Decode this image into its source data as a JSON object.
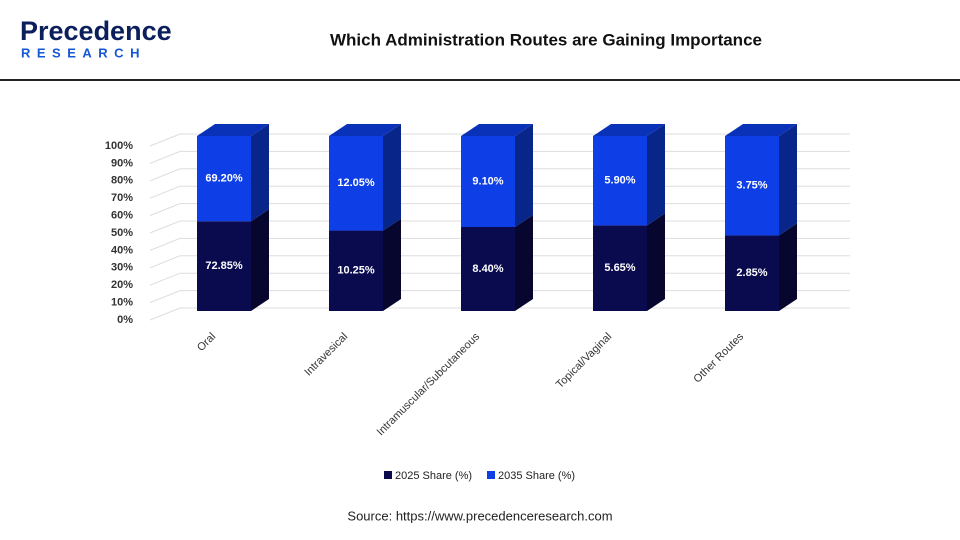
{
  "header": {
    "logo_top": "Precedence",
    "logo_bottom": "RESEARCH"
  },
  "chart_data": {
    "type": "bar",
    "stacking": "percent",
    "title": "Which Administration Routes are Gaining Importance",
    "categories": [
      "Oral",
      "Intravesical",
      "Intramuscular/Subcutaneous",
      "Topical/Vaginal",
      "Other Routes"
    ],
    "series": [
      {
        "name": "2025 Share (%)",
        "color": "#0a0a4f",
        "values": [
          72.85,
          10.25,
          8.4,
          5.65,
          2.85
        ],
        "value_labels": [
          "72.85%",
          "10.25%",
          "8.40%",
          "5.65%",
          "2.85%"
        ]
      },
      {
        "name": "2035 Share (%)",
        "color": "#0d3ee6",
        "values": [
          69.2,
          12.05,
          9.1,
          5.9,
          3.75
        ],
        "value_labels": [
          "69.20%",
          "12.05%",
          "9.10%",
          "5.90%",
          "3.75%"
        ]
      }
    ],
    "ylim": [
      0,
      100
    ],
    "yticks": [
      {
        "value": 0,
        "label": "0%"
      },
      {
        "value": 10,
        "label": "10%"
      },
      {
        "value": 20,
        "label": "20%"
      },
      {
        "value": 30,
        "label": "30%"
      },
      {
        "value": 40,
        "label": "40%"
      },
      {
        "value": 50,
        "label": "50%"
      },
      {
        "value": 60,
        "label": "60%"
      },
      {
        "value": 70,
        "label": "70%"
      },
      {
        "value": 80,
        "label": "80%"
      },
      {
        "value": 90,
        "label": "90%"
      },
      {
        "value": 100,
        "label": "100%"
      }
    ],
    "grid": true,
    "legend": "bottom",
    "source": "Source: https://www.precedenceresearch.com"
  }
}
